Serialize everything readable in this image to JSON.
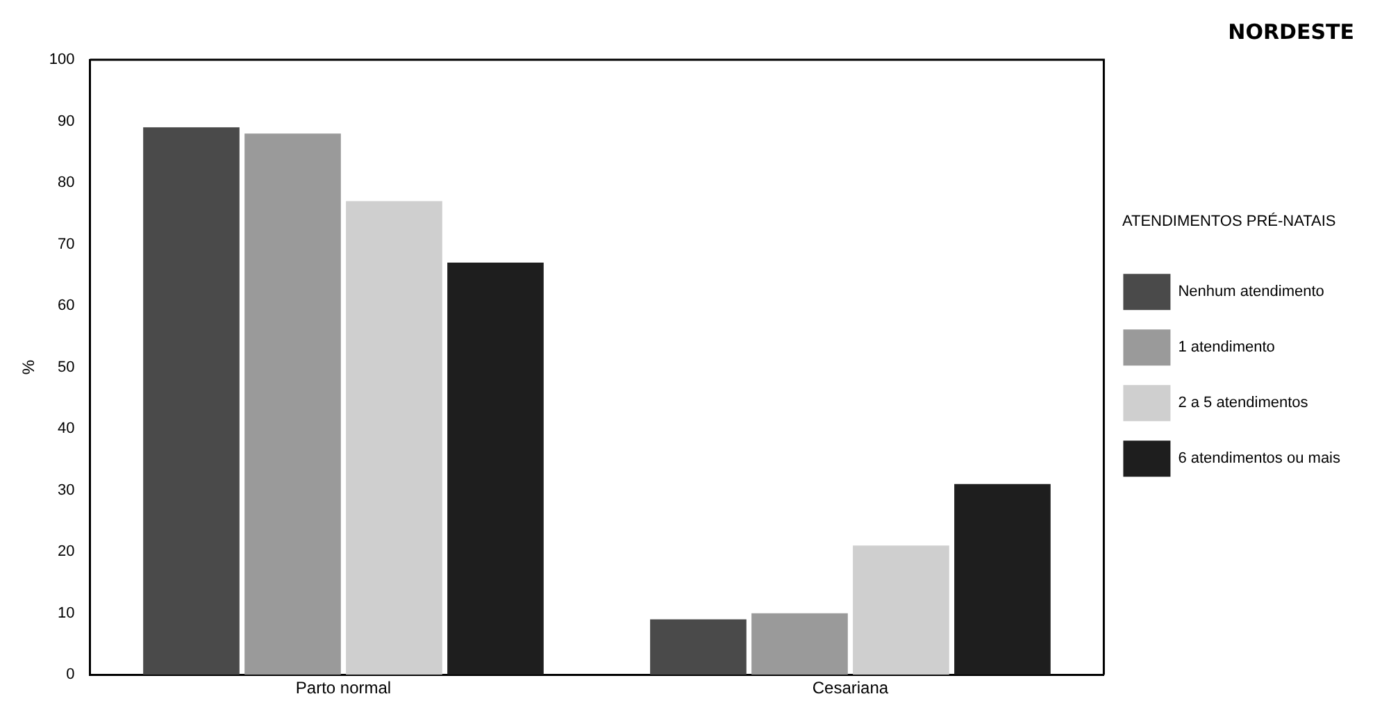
{
  "chart_data": {
    "type": "bar",
    "title": "NORDESTE",
    "ylabel": "%",
    "legend_title": "ATENDIMENTOS PRÉ-NATAIS",
    "categories": [
      "Parto normal",
      "Cesariana"
    ],
    "series": [
      {
        "name": "Nenhum atendimento",
        "color": "#4a4a4a",
        "values": [
          89,
          9
        ]
      },
      {
        "name": "1 atendimento",
        "color": "#9a9a9a",
        "values": [
          88,
          10
        ]
      },
      {
        "name": "2 a 5 atendimentos",
        "color": "#cfcfcf",
        "values": [
          77,
          21
        ]
      },
      {
        "name": "6 atendimentos ou mais",
        "color": "#1e1e1e",
        "values": [
          67,
          31
        ]
      }
    ],
    "ylim": [
      0,
      100
    ],
    "yticks": [
      0,
      10,
      20,
      30,
      40,
      50,
      60,
      70,
      80,
      90,
      100
    ],
    "grid": false,
    "legend": "right"
  }
}
